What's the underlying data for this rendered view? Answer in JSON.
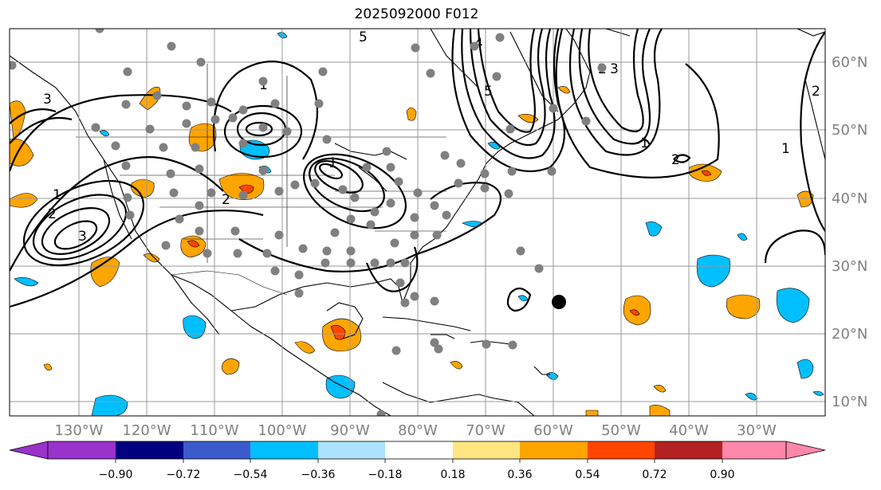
{
  "title": "2025092000 F012",
  "map": {
    "lon_labels": [
      "130°W",
      "120°W",
      "110°W",
      "100°W",
      "90°W",
      "80°W",
      "70°W",
      "60°W",
      "50°W",
      "40°W",
      "30°W"
    ],
    "lat_labels": [
      "60°N",
      "50°N",
      "40°N",
      "30°N",
      "20°N",
      "10°N"
    ],
    "contour_labels": [
      "3",
      "2",
      "2",
      "1",
      "3",
      "5",
      "1",
      "2",
      "3",
      "4",
      "5",
      "1",
      "1",
      "2",
      "2",
      "1"
    ],
    "storm_marker": "black-dot"
  },
  "colorbar": {
    "ticks": [
      "−0.90",
      "−0.72",
      "−0.54",
      "−0.36",
      "−0.18",
      "0.18",
      "0.36",
      "0.54",
      "0.72",
      "0.90"
    ],
    "colors": {
      "under": "#9933cc",
      "bins": [
        "#9933cc",
        "#000080",
        "#3b5bcc",
        "#00bfff",
        "#aee3ff",
        "#ffffff",
        "#ffe680",
        "#ffa500",
        "#ff4500",
        "#b22222"
      ],
      "over": "#ff88aa"
    }
  }
}
